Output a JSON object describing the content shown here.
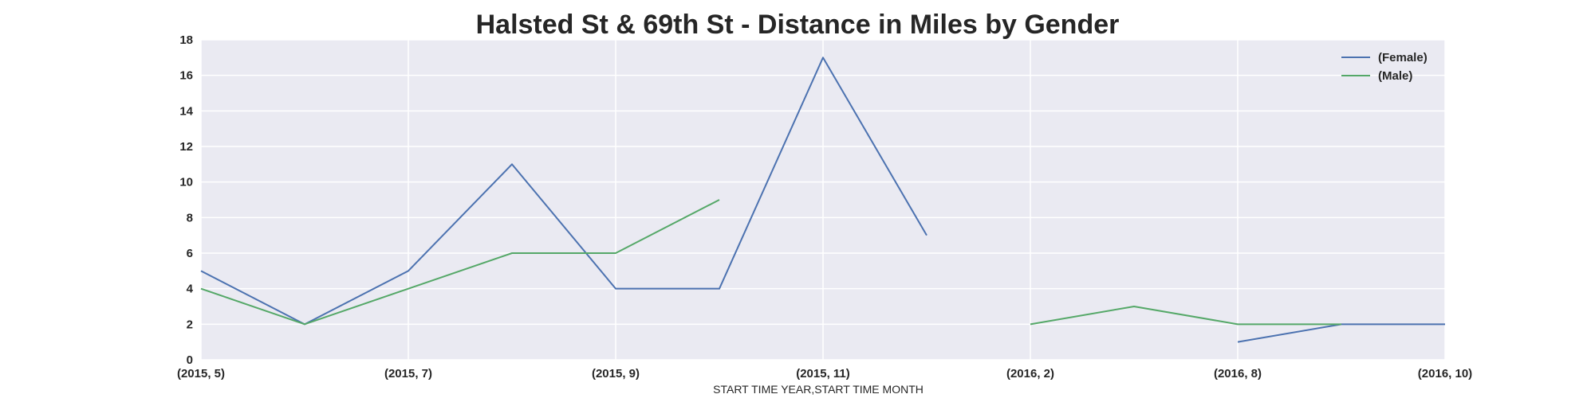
{
  "chart_data": {
    "type": "line",
    "title": "Halsted St & 69th St - Distance in Miles by Gender",
    "xlabel": "START TIME YEAR,START TIME MONTH",
    "ylabel": "",
    "ylim": [
      0,
      18
    ],
    "yticks": [
      "0",
      "2",
      "4",
      "6",
      "8",
      "10",
      "12",
      "14",
      "16",
      "18"
    ],
    "xticks": [
      "(2015, 5)",
      "(2015, 7)",
      "(2015, 9)",
      "(2015, 11)",
      "(2016, 2)",
      "(2016, 8)",
      "(2016, 10)"
    ],
    "xlim": [
      0,
      12
    ],
    "grid": true,
    "legend_position": "top-right",
    "series": [
      {
        "name": "(Female)",
        "color": "#4c72b0",
        "points": [
          [
            0,
            5
          ],
          [
            1,
            2
          ],
          [
            2,
            5
          ],
          [
            3,
            11
          ],
          [
            4,
            4
          ],
          [
            5,
            4
          ],
          [
            6,
            17
          ],
          [
            7,
            7
          ],
          [
            null,
            null
          ],
          [
            10,
            1
          ],
          [
            11,
            2
          ],
          [
            12,
            2
          ]
        ]
      },
      {
        "name": "(Male)",
        "color": "#55a868",
        "points": [
          [
            0,
            4
          ],
          [
            1,
            2
          ],
          [
            2,
            4
          ],
          [
            3,
            6
          ],
          [
            4,
            6
          ],
          [
            5,
            9
          ],
          [
            null,
            null
          ],
          [
            8,
            2
          ],
          [
            9,
            3
          ],
          [
            10,
            2
          ],
          [
            11,
            2
          ]
        ]
      }
    ]
  }
}
